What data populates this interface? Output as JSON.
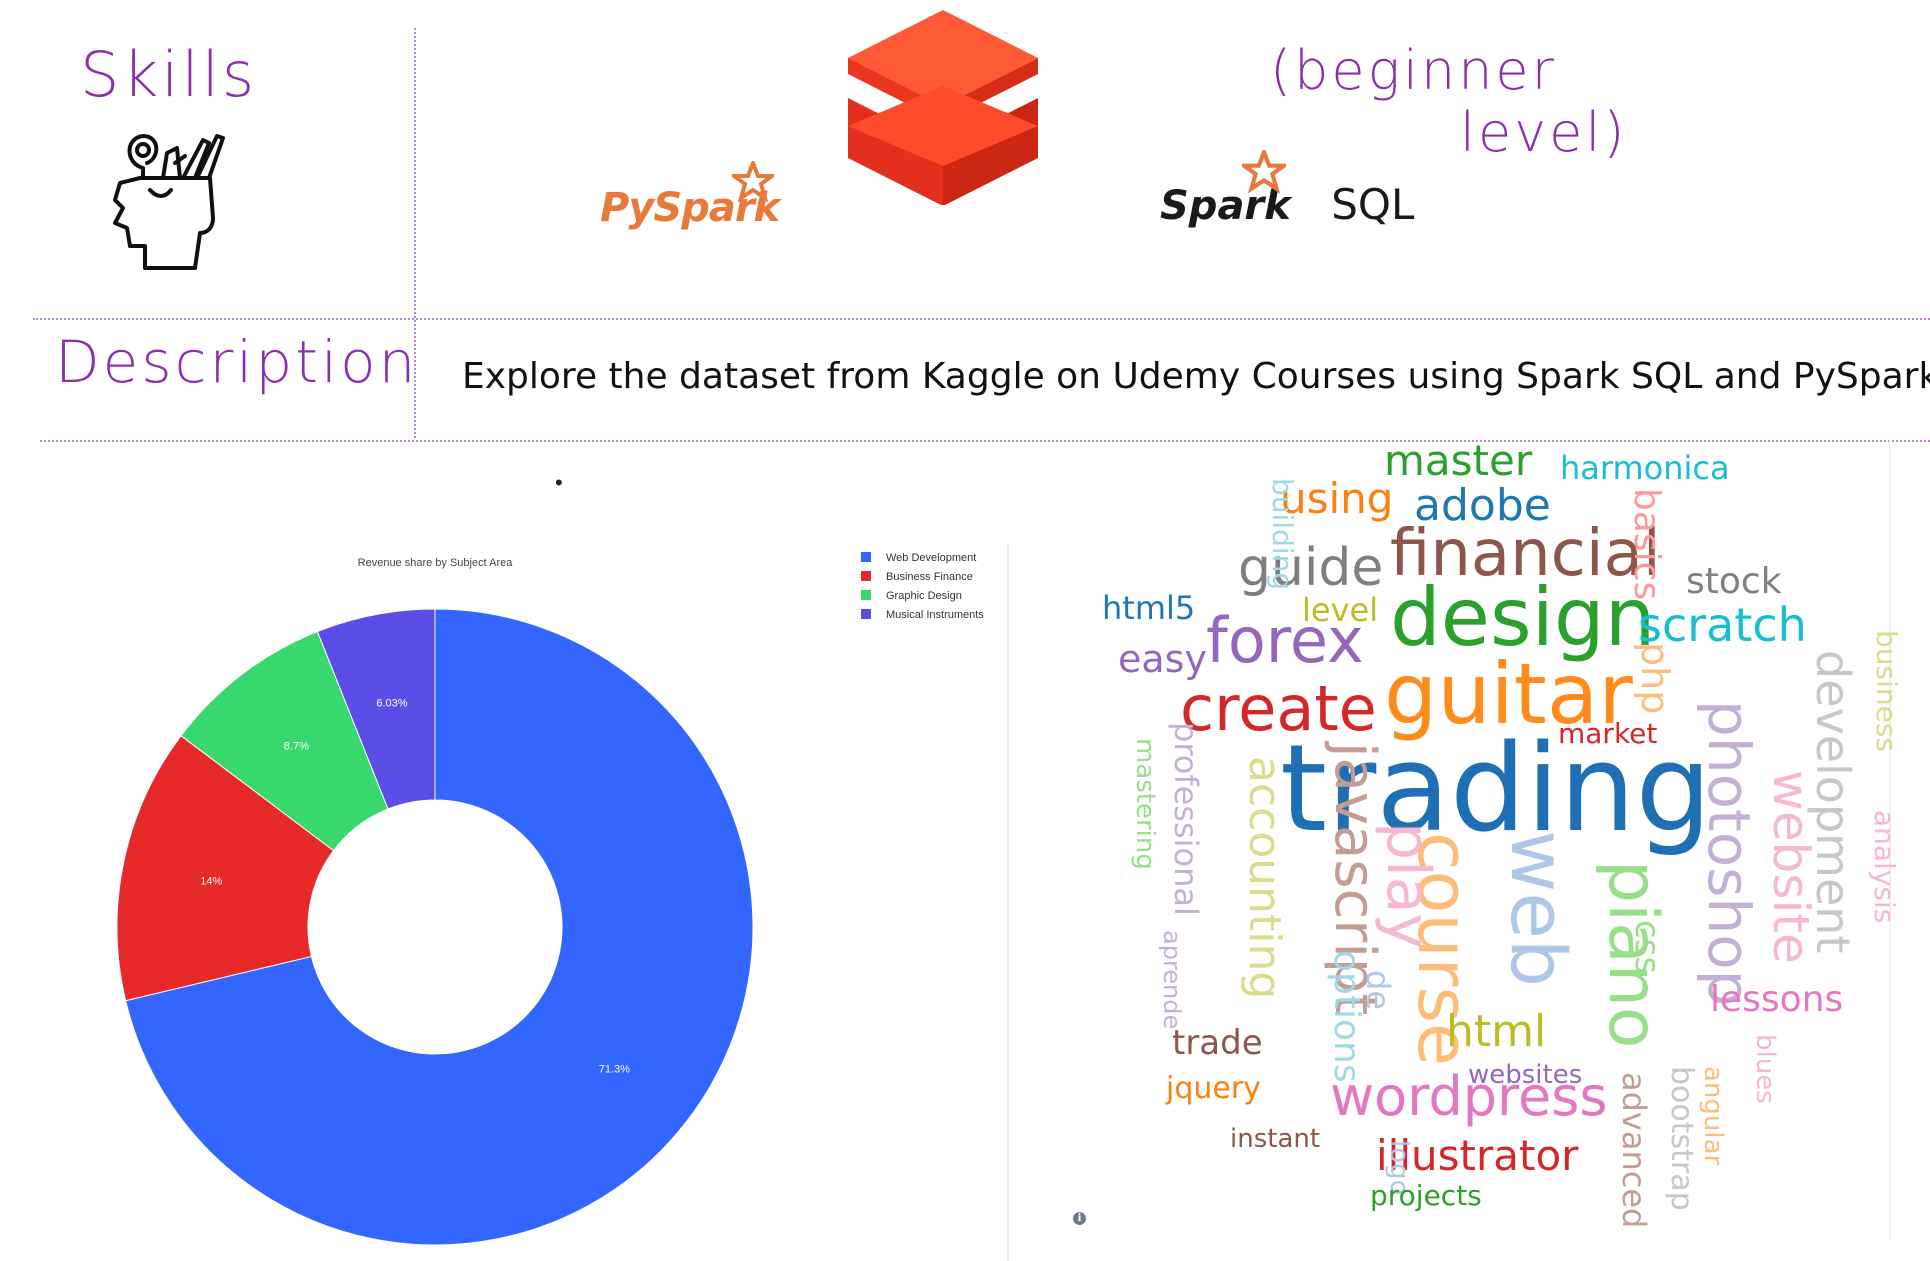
{
  "header": {
    "skills_label": "Skills",
    "level_note_line1": "(beginner",
    "level_note_line2": "level)",
    "pyspark_logo_text": "PySpark",
    "spark_logo_text": "Spark",
    "sql_text": "SQL"
  },
  "icons": {
    "skills_icon": "head-with-tools-icon",
    "databricks_logo": "databricks-logo-icon",
    "info_icon": "info-icon"
  },
  "description": {
    "label": "Description",
    "text": "Explore the dataset from Kaggle on Udemy Courses using Spark SQL and PySpark"
  },
  "colors": {
    "web": "#3366ff",
    "business": "#e62929",
    "graphic": "#38d86e",
    "music": "#5b4de6",
    "databricks": "#ff3621",
    "handwriting": "#8a2fb0"
  },
  "chart_data": {
    "type": "pie",
    "title": "Revenue share by Subject Area",
    "donut": true,
    "legend_position": "top-right",
    "categories": [
      "Web Development",
      "Business Finance",
      "Graphic Design",
      "Musical Instruments"
    ],
    "values": [
      71.3,
      14,
      8.7,
      6.03
    ],
    "labels": [
      "71.3%",
      "14%",
      "8.7%",
      "6.03%"
    ],
    "colors": [
      "#3366ff",
      "#e62929",
      "#38d86e",
      "#5b4de6"
    ]
  },
  "word_cloud": [
    {
      "text": "trading",
      "color": "#1f6fb4"
    },
    {
      "text": "guitar",
      "color": "#ff8c1a"
    },
    {
      "text": "design",
      "color": "#2ca02c"
    },
    {
      "text": "financial",
      "color": "#8c564b"
    },
    {
      "text": "create",
      "color": "#d62728"
    },
    {
      "text": "forex",
      "color": "#9467bd"
    },
    {
      "text": "course",
      "color": "#ffbb78"
    },
    {
      "text": "web",
      "color": "#aec7e8"
    },
    {
      "text": "piano",
      "color": "#98df8a"
    },
    {
      "text": "photoshop",
      "color": "#c5b0d5"
    },
    {
      "text": "wordpress",
      "color": "#e377c2"
    },
    {
      "text": "guide",
      "color": "#7f7f7f"
    },
    {
      "text": "adobe",
      "color": "#1f77b4"
    },
    {
      "text": "master",
      "color": "#2ca02c"
    },
    {
      "text": "using",
      "color": "#ff7f0e"
    },
    {
      "text": "harmonica",
      "color": "#17becf"
    },
    {
      "text": "scratch",
      "color": "#17becf"
    },
    {
      "text": "stock",
      "color": "#7f7f7f"
    },
    {
      "text": "html",
      "color": "#bcbd22"
    },
    {
      "text": "illustrator",
      "color": "#d62728"
    },
    {
      "text": "javascript",
      "color": "#c49c94"
    },
    {
      "text": "play",
      "color": "#f7b6d2"
    },
    {
      "text": "accounting",
      "color": "#dbdb8d"
    },
    {
      "text": "development",
      "color": "#c7c7c7"
    },
    {
      "text": "website",
      "color": "#f7b6d2"
    },
    {
      "text": "lessons",
      "color": "#e377c2"
    },
    {
      "text": "market",
      "color": "#d62728"
    },
    {
      "text": "easy",
      "color": "#9467bd"
    },
    {
      "text": "html5",
      "color": "#1f77b4"
    },
    {
      "text": "level",
      "color": "#bcbd22"
    },
    {
      "text": "basics",
      "color": "#ff9896"
    },
    {
      "text": "php",
      "color": "#ffbb78"
    },
    {
      "text": "building",
      "color": "#9edae5"
    },
    {
      "text": "business",
      "color": "#dbdb8d"
    },
    {
      "text": "analysis",
      "color": "#f7b6d2"
    },
    {
      "text": "professional",
      "color": "#c5b0d5"
    },
    {
      "text": "mastering",
      "color": "#98df8a"
    },
    {
      "text": "aprende",
      "color": "#c5b0d5"
    },
    {
      "text": "options",
      "color": "#9edae5"
    },
    {
      "text": "de",
      "color": "#aec7e8"
    },
    {
      "text": "css",
      "color": "#98df8a"
    },
    {
      "text": "trade",
      "color": "#8c564b"
    },
    {
      "text": "websites",
      "color": "#9467bd"
    },
    {
      "text": "jquery",
      "color": "#ff7f0e"
    },
    {
      "text": "instant",
      "color": "#8c564b"
    },
    {
      "text": "logo",
      "color": "#aec7e8"
    },
    {
      "text": "projects",
      "color": "#2ca02c"
    },
    {
      "text": "advanced",
      "color": "#c49c94"
    },
    {
      "text": "bootstrap",
      "color": "#c7c7c7"
    },
    {
      "text": "angular",
      "color": "#ffbb78"
    },
    {
      "text": "blues",
      "color": "#f7b6d2"
    }
  ]
}
